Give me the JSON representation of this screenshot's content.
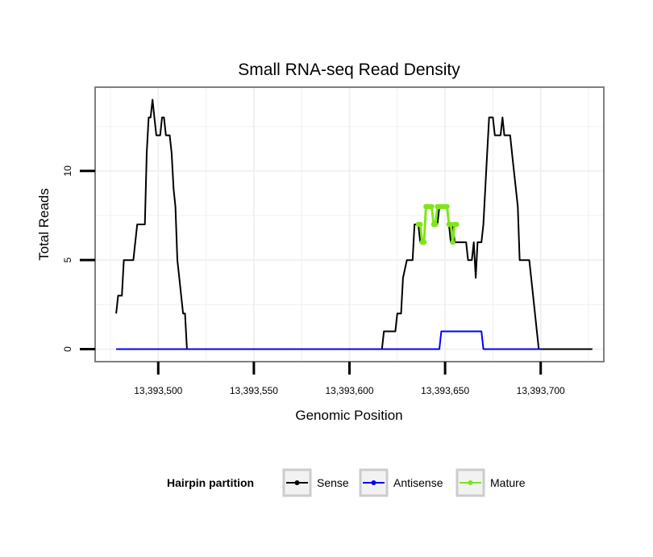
{
  "chart_data": {
    "type": "line",
    "title": "Small RNA-seq Read Density",
    "xlabel": "Genomic Position",
    "ylabel": "Total Reads",
    "xlim": [
      13393467,
      13393733
    ],
    "ylim": [
      -0.7,
      14.7
    ],
    "x_ticks": [
      13393500,
      13393550,
      13393600,
      13393650,
      13393700
    ],
    "x_tick_labels": [
      "13,393,500",
      "13,393,550",
      "13,393,600",
      "13,393,650",
      "13,393,700"
    ],
    "y_ticks": [
      0,
      5,
      10
    ],
    "y_tick_labels": [
      "0",
      "5",
      "10"
    ],
    "grid": true,
    "legend": {
      "title": "Hairpin partition",
      "position": "bottom"
    },
    "series": [
      {
        "name": "Sense",
        "color": "#000000",
        "marker": false,
        "points": [
          [
            13393478,
            2
          ],
          [
            13393479,
            3
          ],
          [
            13393481,
            3
          ],
          [
            13393482,
            5
          ],
          [
            13393486,
            5
          ],
          [
            13393487,
            5
          ],
          [
            13393489,
            7
          ],
          [
            13393493,
            7
          ],
          [
            13393494,
            11
          ],
          [
            13393495,
            13
          ],
          [
            13393496,
            13
          ],
          [
            13393497,
            14
          ],
          [
            13393498,
            13
          ],
          [
            13393499,
            12
          ],
          [
            13393501,
            12
          ],
          [
            13393502,
            13
          ],
          [
            13393503,
            13
          ],
          [
            13393504,
            12
          ],
          [
            13393506,
            12
          ],
          [
            13393507,
            11
          ],
          [
            13393508,
            9
          ],
          [
            13393509,
            8
          ],
          [
            13393510,
            5
          ],
          [
            13393511,
            4
          ],
          [
            13393513,
            2
          ],
          [
            13393514,
            2
          ],
          [
            13393515,
            0
          ],
          [
            13393529,
            0
          ],
          [
            13393617,
            0
          ],
          [
            13393618,
            1
          ],
          [
            13393624,
            1
          ],
          [
            13393625,
            2
          ],
          [
            13393627,
            2
          ],
          [
            13393628,
            4
          ],
          [
            13393630,
            5
          ],
          [
            13393633,
            5
          ],
          [
            13393634,
            7
          ],
          [
            13393636,
            7
          ],
          [
            13393637,
            6
          ],
          [
            13393639,
            6
          ],
          [
            13393640,
            8
          ],
          [
            13393643,
            8
          ],
          [
            13393644,
            7
          ],
          [
            13393646,
            7
          ],
          [
            13393647,
            8
          ],
          [
            13393651,
            8
          ],
          [
            13393652,
            7
          ],
          [
            13393653,
            6
          ],
          [
            13393654,
            7
          ],
          [
            13393655,
            6
          ],
          [
            13393661,
            6
          ],
          [
            13393662,
            5
          ],
          [
            13393664,
            5
          ],
          [
            13393665,
            6
          ],
          [
            13393666,
            4
          ],
          [
            13393667,
            6
          ],
          [
            13393669,
            6
          ],
          [
            13393670,
            7
          ],
          [
            13393672,
            11
          ],
          [
            13393673,
            13
          ],
          [
            13393675,
            13
          ],
          [
            13393676,
            12
          ],
          [
            13393679,
            12
          ],
          [
            13393680,
            13
          ],
          [
            13393681,
            12
          ],
          [
            13393684,
            12
          ],
          [
            13393685,
            11
          ],
          [
            13393686,
            10
          ],
          [
            13393687,
            9
          ],
          [
            13393688,
            8
          ],
          [
            13393689,
            5
          ],
          [
            13393694,
            5
          ],
          [
            13393695,
            4
          ],
          [
            13393699,
            0
          ],
          [
            13393727,
            0
          ]
        ]
      },
      {
        "name": "Antisense",
        "color": "#0000ff",
        "marker": false,
        "points": [
          [
            13393478,
            0
          ],
          [
            13393647,
            0
          ],
          [
            13393648,
            1
          ],
          [
            13393669,
            1
          ],
          [
            13393670,
            0
          ],
          [
            13393700,
            0
          ]
        ]
      },
      {
        "name": "Mature",
        "color": "#7fe51a",
        "marker": true,
        "points": [
          [
            13393636,
            7
          ],
          [
            13393637,
            7
          ],
          [
            13393638,
            6
          ],
          [
            13393639,
            6
          ],
          [
            13393640,
            8
          ],
          [
            13393641,
            8
          ],
          [
            13393642,
            8
          ],
          [
            13393643,
            8
          ],
          [
            13393644,
            7
          ],
          [
            13393645,
            7
          ],
          [
            13393646,
            8
          ],
          [
            13393647,
            8
          ],
          [
            13393648,
            8
          ],
          [
            13393649,
            8
          ],
          [
            13393650,
            8
          ],
          [
            13393651,
            8
          ],
          [
            13393652,
            7
          ],
          [
            13393653,
            7
          ],
          [
            13393654,
            6
          ],
          [
            13393655,
            7
          ],
          [
            13393656,
            7
          ]
        ]
      }
    ]
  }
}
